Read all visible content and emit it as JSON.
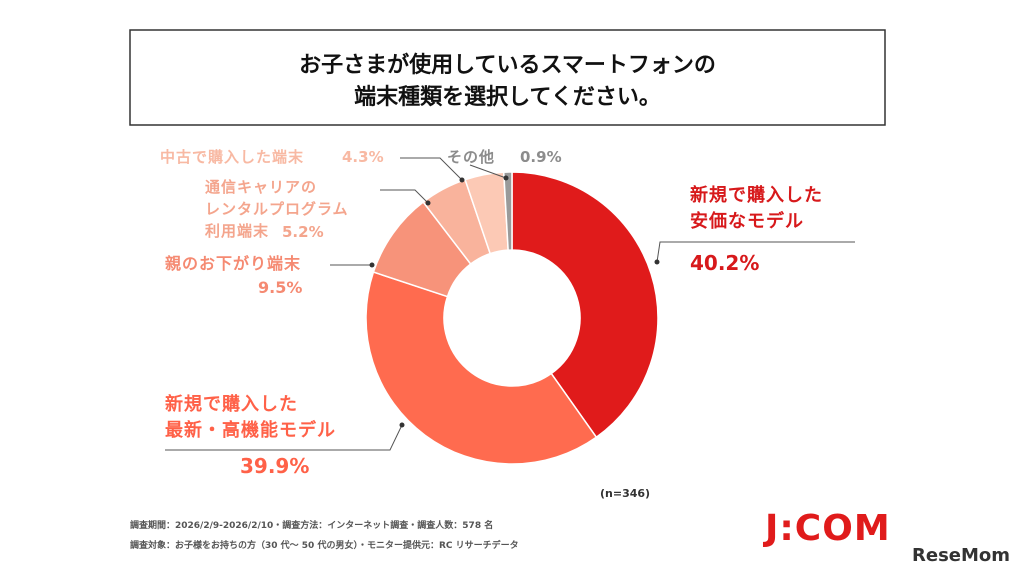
{
  "title": "お子さまが使用しているスマートフォンの\n端末種類を選択してください。",
  "chart_data": {
    "type": "pie",
    "categories": [
      "新規で購入した\n安価なモデル",
      "新規で購入した\n最新・高機能モデル",
      "親のお下がり端末",
      "通信キャリアの\nレンタルプログラム\n利用端末",
      "中古で購入した端末",
      "その他"
    ],
    "values": [
      40.2,
      39.9,
      9.5,
      5.2,
      4.3,
      0.9
    ],
    "value_labels": [
      "40.2%",
      "39.9%",
      "9.5%",
      "5.2%",
      "4.3%",
      "0.9%"
    ],
    "colors": [
      "#e01b1b",
      "#ff6b4f",
      "#f7937a",
      "#f9b39c",
      "#fcc9b5",
      "#9a9a9a"
    ],
    "label_colors": [
      "#d7191b",
      "#ff6148",
      "#f58a72",
      "#f4a58d",
      "#f8b9a3",
      "#8c8c8c"
    ]
  },
  "sample_size": "(n=346)",
  "notes": [
    "調査期間：2026/2/9-2026/2/10・調査方法：インターネット調査・調査人数：578 名",
    "調査対象：お子様をお持ちの方（30 代～ 50 代の男女）・モニター提供元：RC リサーチデータ"
  ],
  "logo": "J:COM",
  "watermark": "ReseMom"
}
